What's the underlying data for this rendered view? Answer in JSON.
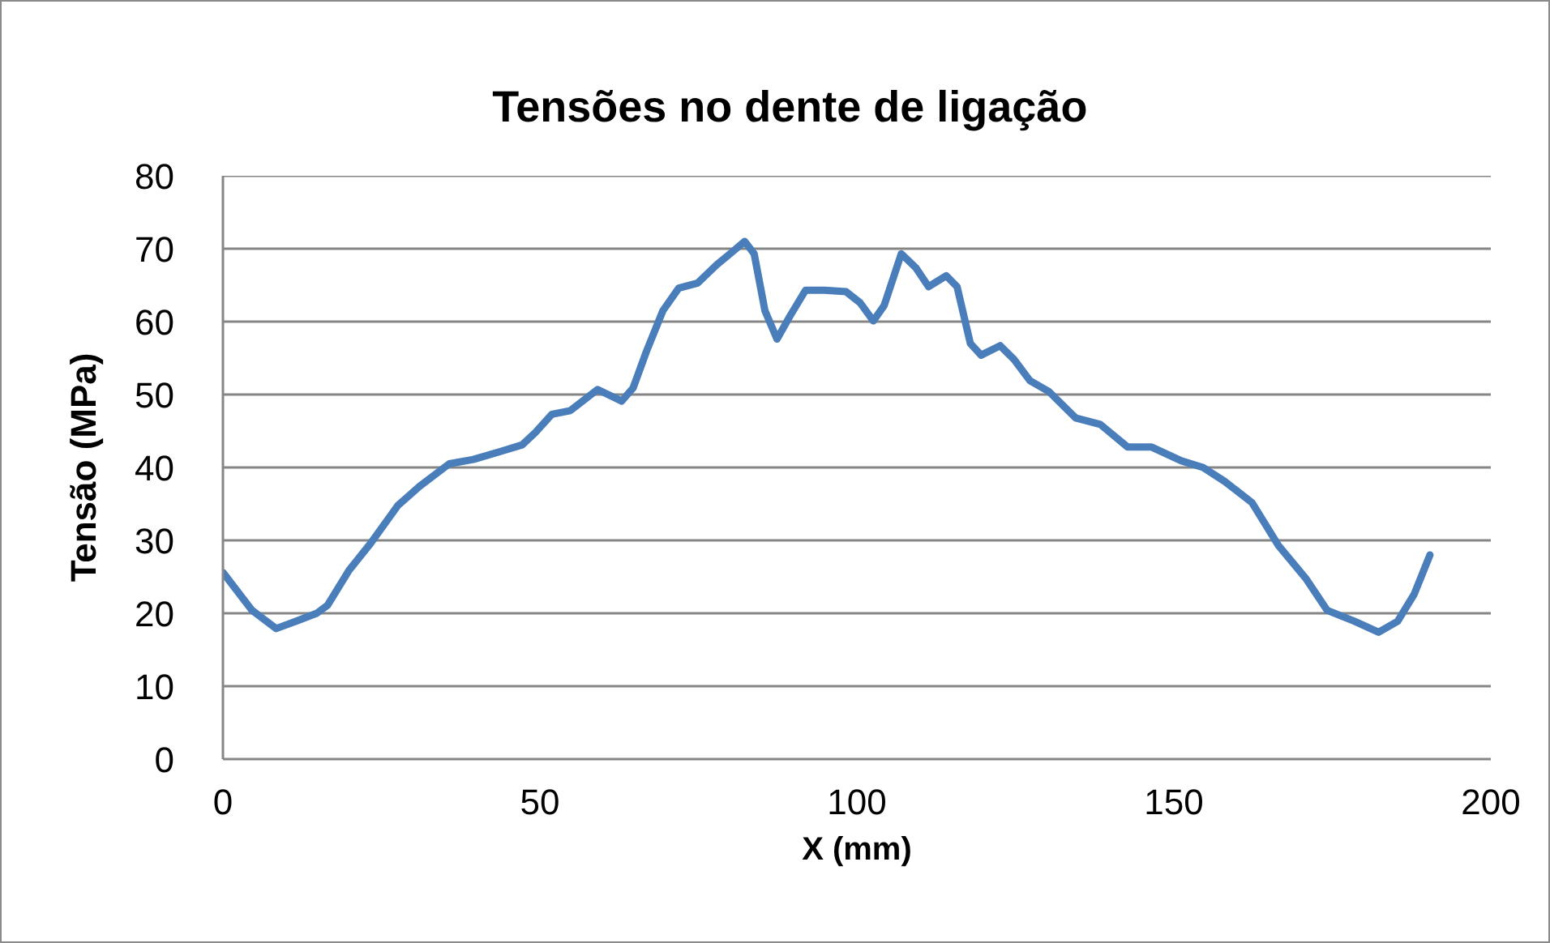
{
  "chart_data": {
    "type": "line",
    "title": "Tensões no dente de ligação",
    "xlabel": "X (mm)",
    "ylabel": "Tensão (MPa)",
    "x": [
      0,
      4.6,
      8.4,
      11.8,
      14.8,
      16.5,
      19.9,
      23.3,
      27.6,
      31,
      35.7,
      39.5,
      43.8,
      47.2,
      49.3,
      51.9,
      54.8,
      59.1,
      62.9,
      64.7,
      66.8,
      69.4,
      71.9,
      74.9,
      77.9,
      80.4,
      82.3,
      83.8,
      85.5,
      87.4,
      89.4,
      91.9,
      94.9,
      98.3,
      100.5,
      102.6,
      104.3,
      107,
      109.3,
      111.3,
      114.1,
      115.8,
      117.9,
      119.6,
      122.6,
      124.8,
      127.3,
      130.3,
      134.5,
      138.4,
      142.7,
      146.5,
      151.2,
      154.6,
      158,
      162.3,
      166.5,
      170.8,
      174.2,
      178.5,
      182.3,
      185.3,
      187.9,
      190.4
    ],
    "series": [
      {
        "color": "#4a7ebb",
        "values": [
          25.6,
          20.4,
          17.9,
          19,
          20,
          21.1,
          25.9,
          29.6,
          34.8,
          37.4,
          40.5,
          41.1,
          42.2,
          43.1,
          44.8,
          47.3,
          47.8,
          50.7,
          49.1,
          50.9,
          55.9,
          61.5,
          64.6,
          65.3,
          67.8,
          69.6,
          71,
          69.3,
          61.5,
          57.6,
          60.7,
          64.3,
          64.3,
          64.1,
          62.6,
          60.1,
          62.2,
          69.3,
          67.4,
          64.8,
          66.3,
          64.8,
          57,
          55.4,
          56.7,
          54.8,
          51.9,
          50.4,
          46.8,
          45.9,
          42.8,
          42.8,
          40.9,
          40,
          38.1,
          35.2,
          29.3,
          24.8,
          20.4,
          18.9,
          17.4,
          18.9,
          22.6,
          28
        ]
      }
    ],
    "xlim": [
      0,
      200
    ],
    "ylim": [
      0,
      80
    ],
    "xticks": [
      0,
      50,
      100,
      150,
      200
    ],
    "yticks": [
      0,
      10,
      20,
      30,
      40,
      50,
      60,
      70,
      80
    ],
    "grid": "y"
  }
}
